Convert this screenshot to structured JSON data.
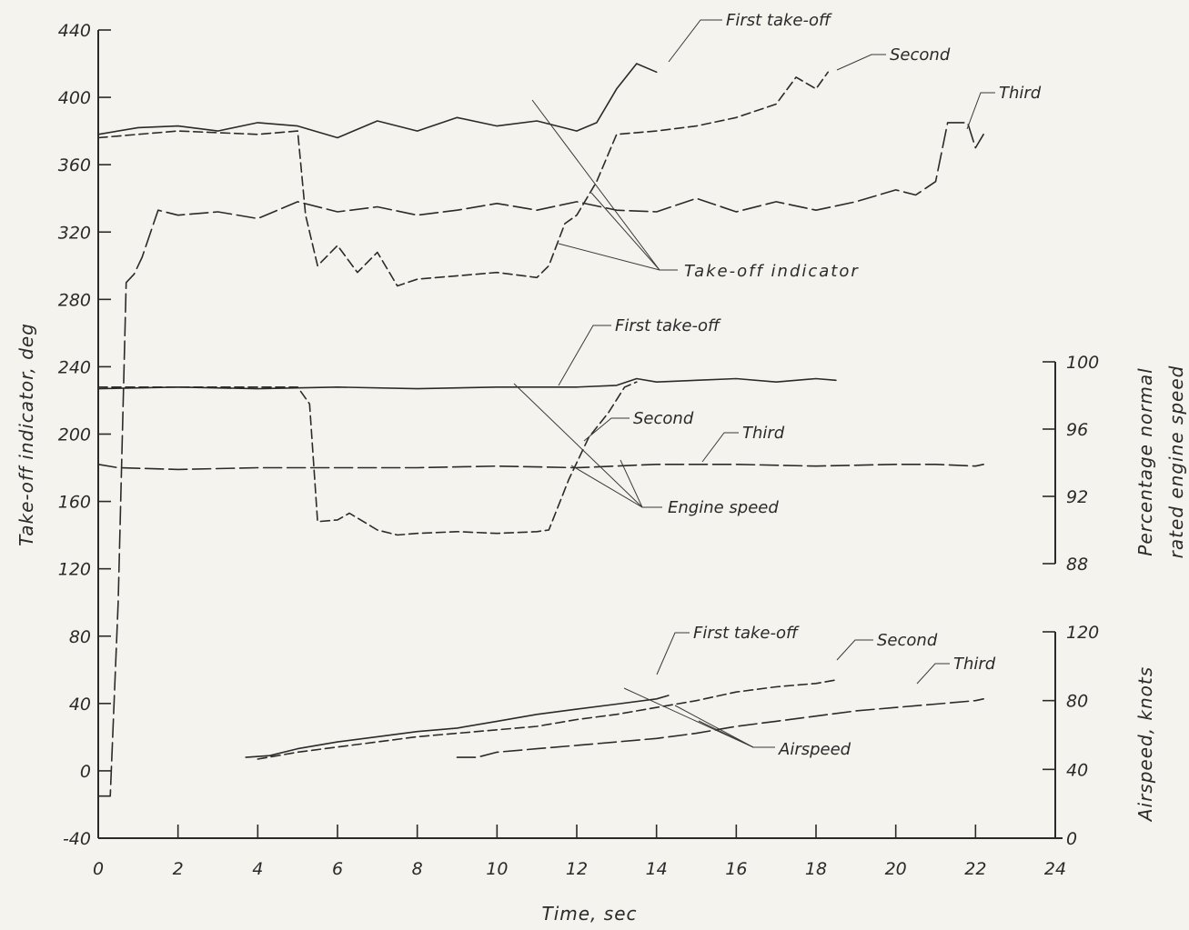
{
  "chart_data": {
    "type": "line",
    "title": "",
    "xlabel": "Time, sec",
    "xlim": [
      0,
      24
    ],
    "xticks": [
      0,
      2,
      4,
      6,
      8,
      10,
      12,
      14,
      16,
      18,
      20,
      22,
      24
    ],
    "axes": {
      "indicator": {
        "label": "Take-off indicator, deg",
        "ylim": [
          -40,
          440
        ],
        "ticks": [
          -40,
          0,
          40,
          80,
          120,
          160,
          200,
          240,
          280,
          320,
          360,
          400,
          440
        ]
      },
      "engine_speed": {
        "label_line1": "Percentage normal",
        "label_line2": "rated engine speed",
        "ylim": [
          88,
          100
        ],
        "ticks": [
          88,
          92,
          96,
          100
        ]
      },
      "airspeed": {
        "label": "Airspeed, knots",
        "ylim": [
          0,
          120
        ],
        "ticks": [
          0,
          40,
          80,
          120
        ]
      }
    },
    "series": [
      {
        "group": "indicator",
        "run": "First take-off",
        "dash": "solid",
        "x": [
          0,
          1,
          2,
          3,
          4,
          5,
          6,
          7,
          8,
          9,
          10,
          11,
          12,
          12.5,
          13,
          13.5,
          14
        ],
        "y": [
          378,
          382,
          383,
          380,
          385,
          383,
          376,
          386,
          380,
          388,
          383,
          386,
          380,
          385,
          405,
          420,
          415
        ]
      },
      {
        "group": "indicator",
        "run": "Second",
        "dash": "dash",
        "x": [
          0,
          2,
          4,
          5,
          5.2,
          5.5,
          6,
          6.5,
          7,
          7.5,
          8,
          9,
          10,
          11,
          11.3,
          11.7,
          12,
          12.5,
          13,
          14,
          15,
          16,
          17,
          17.5,
          18,
          18.3
        ],
        "y": [
          376,
          380,
          378,
          380,
          330,
          300,
          312,
          296,
          308,
          288,
          292,
          294,
          296,
          293,
          300,
          325,
          330,
          350,
          378,
          380,
          383,
          388,
          396,
          412,
          405,
          415
        ]
      },
      {
        "group": "indicator",
        "run": "Third",
        "dash": "longdash",
        "x": [
          0,
          0.3,
          0.5,
          0.7,
          0.9,
          1.1,
          1.5,
          2,
          3,
          4,
          5,
          6,
          7,
          8,
          9,
          10,
          11,
          12,
          13,
          14,
          15,
          16,
          17,
          18,
          19,
          20,
          20.5,
          21,
          21.3,
          21.8,
          22,
          22.2
        ],
        "y": [
          -15,
          -15,
          100,
          290,
          295,
          305,
          333,
          330,
          332,
          328,
          338,
          332,
          335,
          330,
          333,
          337,
          333,
          338,
          333,
          332,
          340,
          332,
          338,
          333,
          338,
          345,
          342,
          350,
          385,
          385,
          370,
          378
        ]
      },
      {
        "group": "engine_speed",
        "run": "First take-off",
        "dash": "solid",
        "x": [
          0,
          2,
          4,
          6,
          8,
          10,
          12,
          13,
          13.5,
          14,
          15,
          16,
          17,
          18,
          18.5
        ],
        "y": [
          98.4,
          98.5,
          98.4,
          98.5,
          98.4,
          98.5,
          98.5,
          98.6,
          99.0,
          98.8,
          98.9,
          99.0,
          98.8,
          99.0,
          98.9
        ]
      },
      {
        "group": "engine_speed",
        "run": "Second",
        "dash": "dash",
        "x": [
          0,
          2,
          4,
          5,
          5.3,
          5.5,
          6,
          6.3,
          7,
          7.5,
          8,
          9,
          10,
          11,
          11.3,
          11.8,
          12.3,
          12.8,
          13.2,
          13.5
        ],
        "y": [
          98.5,
          98.5,
          98.5,
          98.5,
          97.5,
          90.5,
          90.6,
          91.0,
          90.0,
          89.7,
          89.8,
          89.9,
          89.8,
          89.9,
          90.0,
          93.0,
          95.5,
          97.0,
          98.5,
          98.8
        ]
      },
      {
        "group": "engine_speed",
        "run": "Third",
        "dash": "longdash",
        "x": [
          0,
          0.5,
          2,
          4,
          6,
          8,
          10,
          12,
          14,
          16,
          18,
          20,
          21,
          22,
          22.2
        ],
        "y": [
          93.9,
          93.7,
          93.6,
          93.7,
          93.7,
          93.7,
          93.8,
          93.7,
          93.9,
          93.9,
          93.8,
          93.9,
          93.9,
          93.8,
          93.9
        ]
      },
      {
        "group": "airspeed",
        "run": "First take-off",
        "dash": "solid",
        "x": [
          3.7,
          4.3,
          5,
          6,
          7,
          8,
          9,
          10,
          11,
          12,
          13,
          14,
          14.3
        ],
        "y": [
          47,
          48,
          52,
          56,
          59,
          62,
          64,
          68,
          72,
          75,
          78,
          81,
          83
        ]
      },
      {
        "group": "airspeed",
        "run": "Second",
        "dash": "dash",
        "x": [
          4,
          5,
          6,
          7,
          8,
          9,
          10,
          11,
          12,
          13,
          14,
          15,
          16,
          17,
          18,
          18.5
        ],
        "y": [
          46,
          50,
          53,
          56,
          59,
          61,
          63,
          65,
          69,
          72,
          76,
          80,
          85,
          88,
          90,
          92
        ]
      },
      {
        "group": "airspeed",
        "run": "Third",
        "dash": "longdash",
        "x": [
          9,
          9.5,
          10,
          11,
          12,
          13,
          14,
          15,
          16,
          17,
          18,
          19,
          20,
          21,
          22,
          22.2
        ],
        "y": [
          47,
          47,
          50,
          52,
          54,
          56,
          58,
          61,
          65,
          68,
          71,
          74,
          76,
          78,
          80,
          81
        ]
      }
    ],
    "annotations": {
      "ind_first": "First take-off",
      "ind_second": "Second",
      "ind_third": "Third",
      "ind_group": "Take-off indicator",
      "eng_first": "First take-off",
      "eng_second": "Second",
      "eng_third": "Third",
      "eng_group": "Engine speed",
      "air_first": "First take-off",
      "air_second": "Second",
      "air_third": "Third",
      "air_group": "Airspeed"
    }
  }
}
